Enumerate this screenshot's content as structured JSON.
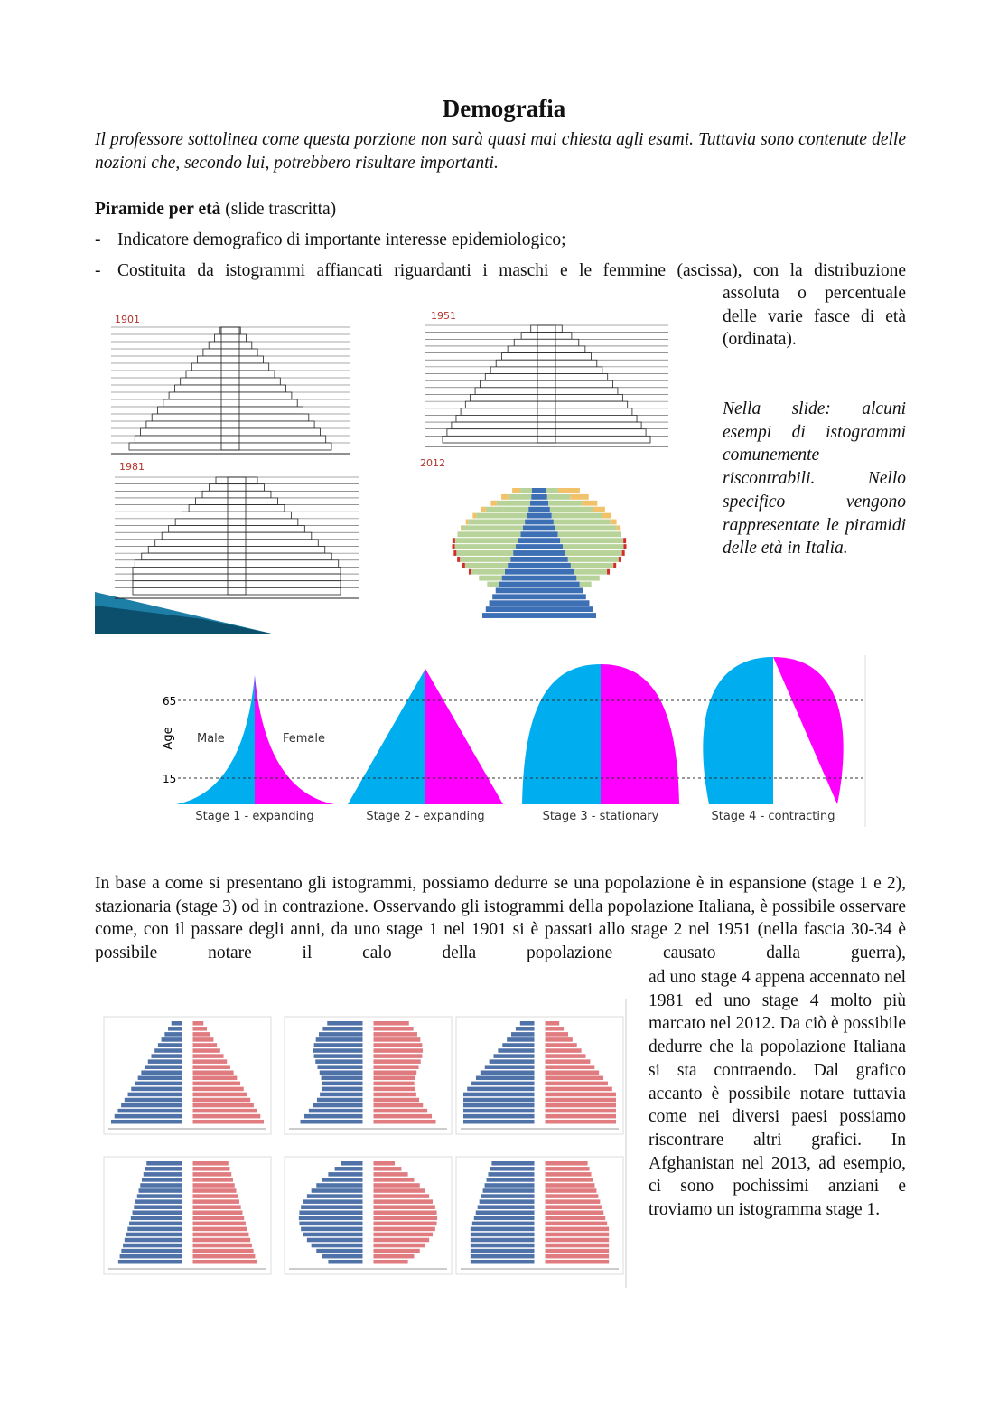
{
  "header": {
    "title": "Demografia",
    "intro": "Il professore sottolinea come questa porzione non sarà quasi mai chiesta agli esami. Tuttavia sono contenute delle nozioni che, secondo lui, potrebbero risultare importanti."
  },
  "section": {
    "heading": "Piramide per età",
    "heading_note": "(slide trascritta)",
    "bullets": [
      "Indicatore demografico di importante interesse epidemiologico;",
      "Costituita da istogrammi affiancati riguardanti i maschi e le femmine (ascissa), con la distribuzione"
    ],
    "bullet_continuation": "assoluta o percentuale delle varie fasce di età (ordinata).",
    "caption": "Nella slide: alcuni esempi di istogrammi comunemente riscontrabili. Nello specifico vengono rappresentate le piramidi delle età in Italia."
  },
  "slide": {
    "years": [
      "1901",
      "1951",
      "1981",
      "2012"
    ]
  },
  "stages": {
    "axis_label": "Age",
    "ticks": [
      "65",
      "15"
    ],
    "male": "Male",
    "female": "Female",
    "labels": [
      "Stage 1 - expanding",
      "Stage 2 - expanding",
      "Stage 3 - stationary",
      "Stage 4 - contracting"
    ]
  },
  "body": {
    "paragraph": "In base a come si presentano gli istogrammi, possiamo dedurre se una popolazione è in espansione (stage 1 e 2), stazionaria (stage 3) od in contrazione. Osservando gli istogrammi della popolazione Italiana, è possibile osservare come, con il passare degli anni, da uno stage 1 nel 1901 si è passati allo stage 2 nel 1951 (nella fascia 30-34 è possibile notare il calo della popolazione causato dalla guerra),",
    "continuation": "ad uno stage 4 appena accennato nel 1981 ed uno stage 4 molto più marcato nel 2012. Da ciò è possibile dedurre che la popolazione Italiana si sta contraendo. Dal grafico accanto è possibile notare tuttavia come nei diversi paesi possiamo riscontrare altri grafici. In Afghanistan nel 2013, ad esempio, ci sono pochissimi anziani e troviamo un istogramma stage 1."
  }
}
